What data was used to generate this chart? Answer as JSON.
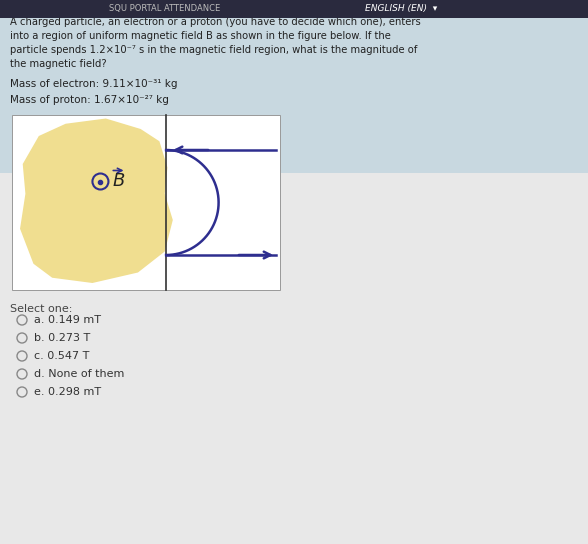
{
  "bg_color": "#d8d8d8",
  "header_bar_color": "#2a2a3e",
  "header_text": "ENGLISH (EN)  ▾",
  "header_left_text": "SQU PORTAL ATTENDANCE",
  "title_lines": [
    "A charged particle, an electron or a proton (you have to decide which one), enters",
    "into a region of uniform magnetic field B as shown in the figure below. If the",
    "particle spends 1.2×10⁻⁷ s in the magnetic field region, what is the magnitude of",
    "the magnetic field?"
  ],
  "mass_electron": "Mass of electron: 9.11×10⁻³¹ kg",
  "mass_proton": "Mass of proton: 1.67×10⁻²⁷ kg",
  "select_one_text": "Select one:",
  "options": [
    "a. 0.149 mT",
    "b. 0.273 T",
    "c. 0.547 T",
    "d. None of them",
    "e. 0.298 mT"
  ],
  "fig_bg": "#f0de90",
  "fig_white": "#ffffff",
  "text_color": "#222222",
  "arrow_color": "#2e2e8f",
  "divider_color": "#333333",
  "select_color": "#444444",
  "option_color": "#333333"
}
